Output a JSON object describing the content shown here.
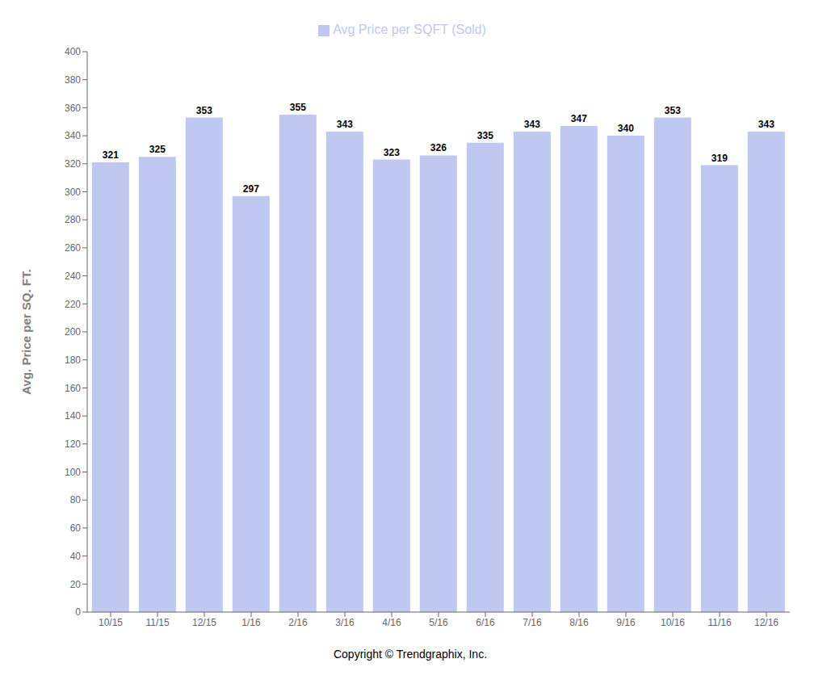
{
  "chart_data": {
    "type": "bar",
    "categories": [
      "10/15",
      "11/15",
      "12/15",
      "1/16",
      "2/16",
      "3/16",
      "4/16",
      "5/16",
      "6/16",
      "7/16",
      "8/16",
      "9/16",
      "10/16",
      "11/16",
      "12/16"
    ],
    "series": [
      {
        "name": "Avg Price per SQFT (Sold)",
        "color": "#bfc8f0",
        "values": [
          321,
          325,
          353,
          297,
          355,
          343,
          323,
          326,
          335,
          343,
          347,
          340,
          353,
          319,
          343
        ]
      }
    ],
    "y_label": "Avg. Price per SQ. FT.",
    "ylim": [
      0,
      400
    ],
    "yticks": [
      0,
      20,
      40,
      60,
      80,
      100,
      120,
      140,
      160,
      180,
      200,
      220,
      240,
      260,
      280,
      300,
      320,
      340,
      360,
      380,
      400
    ],
    "grid": false,
    "legend": "top",
    "data_labels": true,
    "annotations": [
      "Copyright © Trendgraphix, Inc."
    ]
  }
}
